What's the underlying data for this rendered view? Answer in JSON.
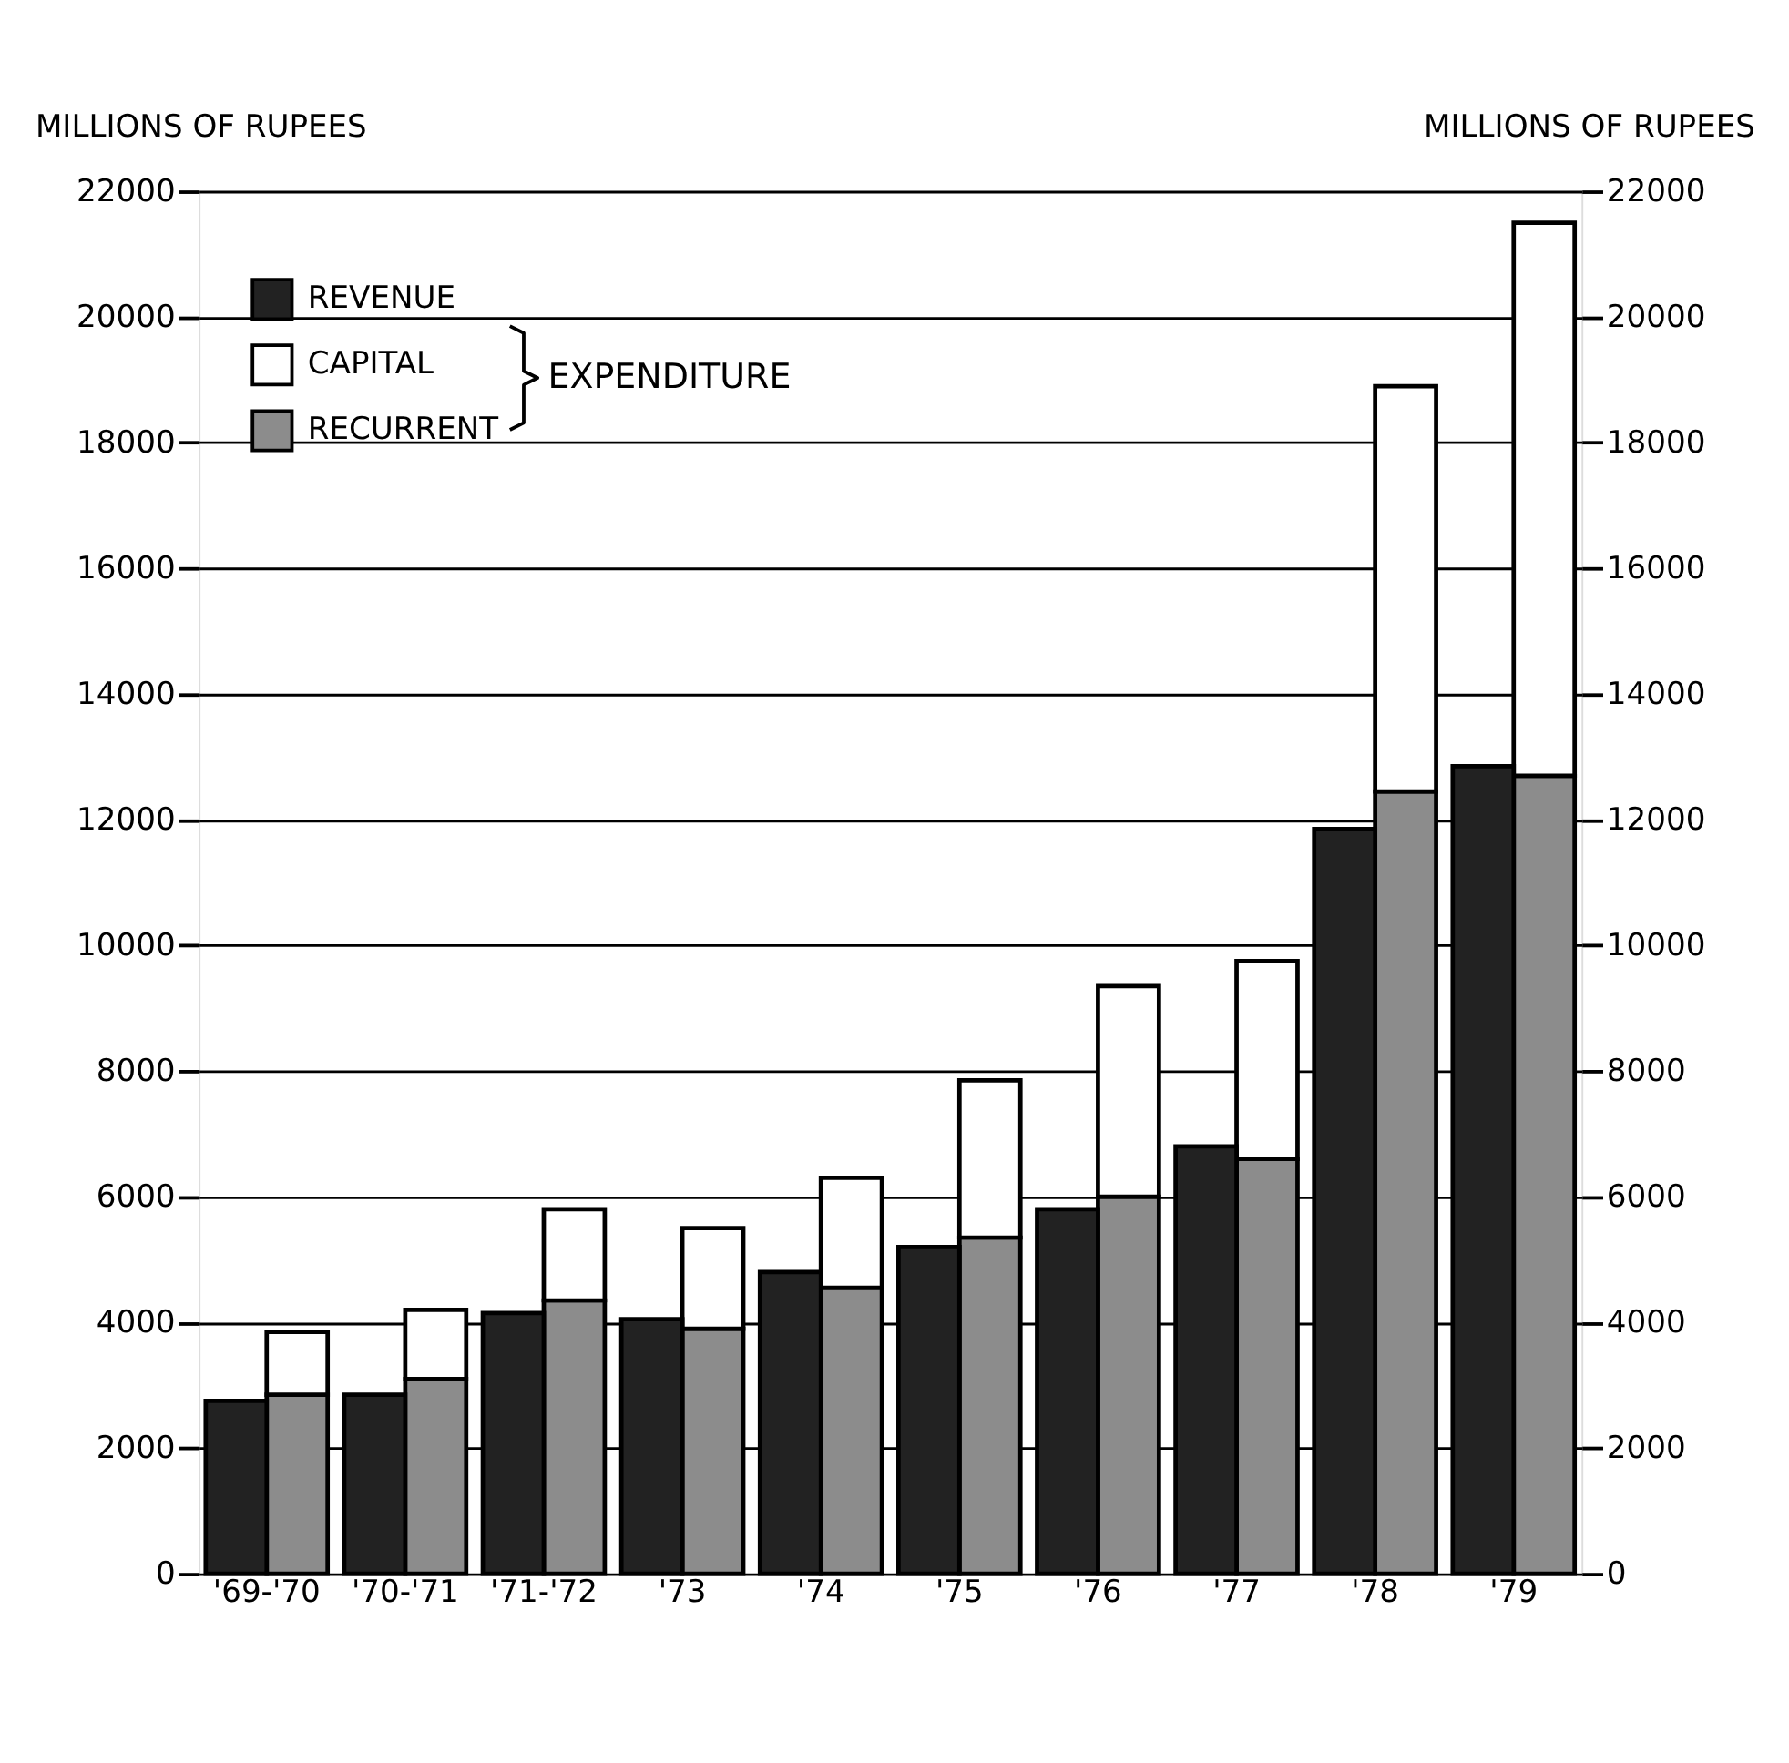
{
  "chart_data": {
    "type": "bar",
    "ylabel": "MILLIONS OF RUPEES",
    "y2label": "MILLIONS OF RUPEES",
    "legend_title": "EXPENDITURE",
    "categories": [
      "'69-'70",
      "'70-'71",
      "'71-'72",
      "'73",
      "'74",
      "'75",
      "'76",
      "'77",
      "'78",
      "'79"
    ],
    "stacked": true,
    "series": [
      {
        "name": "REVENUE",
        "axis": "y2",
        "color": "#222222",
        "values": [
          2750,
          2850,
          4150,
          4050,
          4800,
          5200,
          5800,
          6800,
          11850,
          12850
        ]
      },
      {
        "name": "RECURRENT",
        "color": "#8c8c8c",
        "values": [
          2850,
          3100,
          4350,
          3900,
          4550,
          5350,
          6000,
          6600,
          12450,
          12700
        ]
      },
      {
        "name": "CAPITAL",
        "color": "#ffffff",
        "values": [
          1000,
          1100,
          1450,
          1600,
          1750,
          2500,
          3350,
          3150,
          6450,
          8800
        ]
      }
    ],
    "ylim": [
      0,
      22000
    ],
    "yticks": [
      0,
      2000,
      4000,
      6000,
      8000,
      10000,
      12000,
      14000,
      16000,
      18000,
      20000,
      22000
    ],
    "y2lim": [
      0,
      22000
    ],
    "y2ticks": [
      0,
      2000,
      4000,
      6000,
      8000,
      10000,
      12000,
      14000,
      16000,
      18000,
      20000,
      22000
    ],
    "grid": "y",
    "legend": "top left"
  }
}
